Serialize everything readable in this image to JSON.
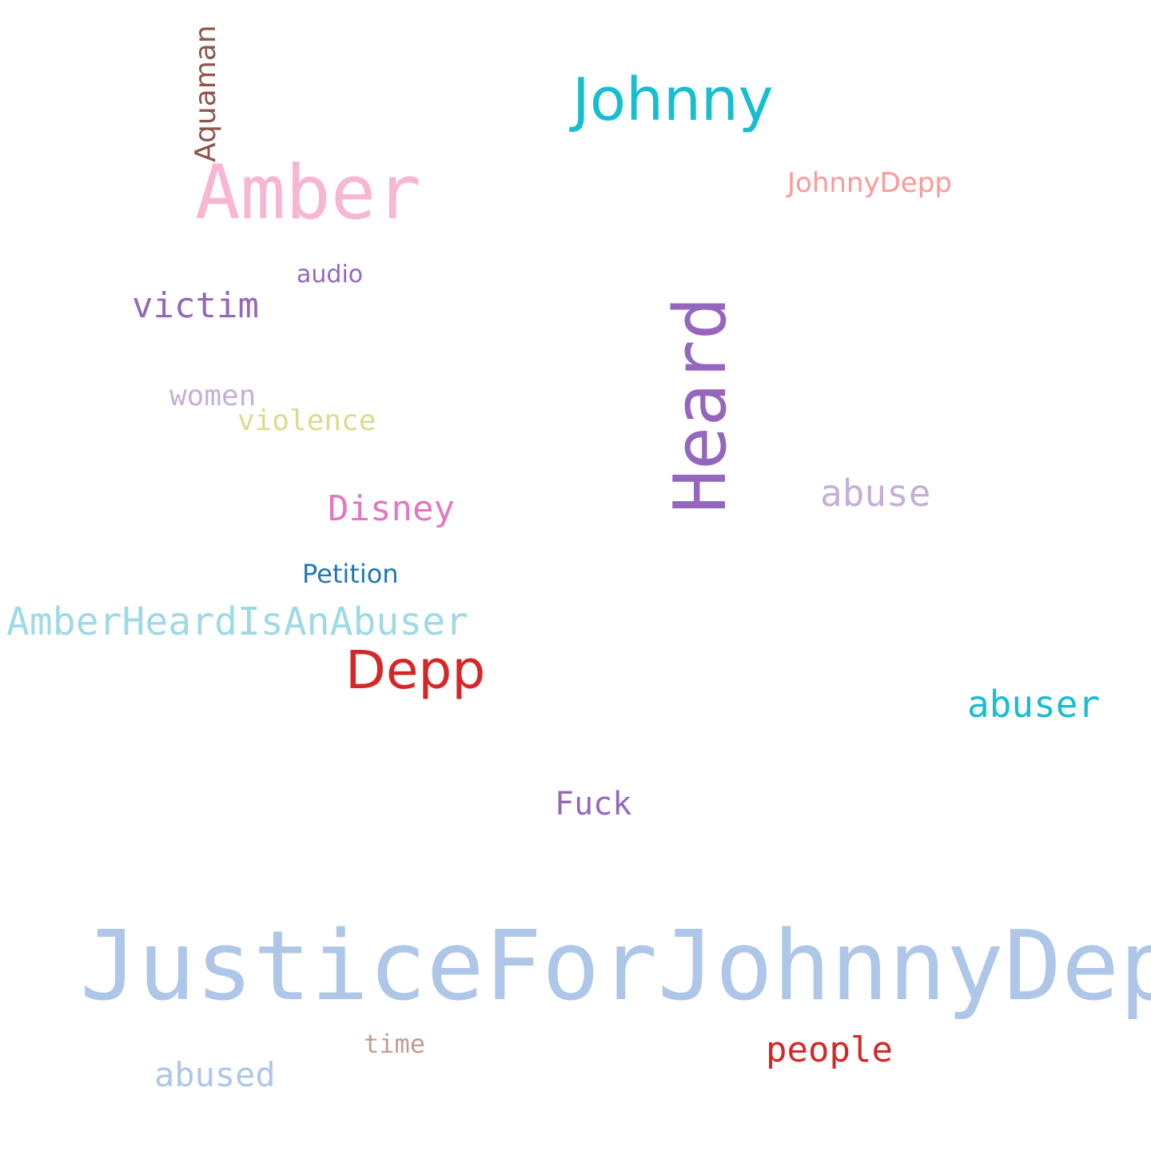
{
  "words": {
    "justice_for_johnny_depp": {
      "text": "JusticeForJohnnyDepp",
      "color": "#aec7e8"
    },
    "amber": {
      "text": "Amber",
      "color": "#f7b6d2"
    },
    "johnny": {
      "text": "Johnny",
      "color": "#17becf"
    },
    "heard": {
      "text": "Heard",
      "color": "#9467bd"
    },
    "depp": {
      "text": "Depp",
      "color": "#d62728"
    },
    "amber_heard_is_an_abuser": {
      "text": "AmberHeardIsAnAbuser",
      "color": "#9edae5"
    },
    "aquaman": {
      "text": "Aquaman",
      "color": "#8c564b"
    },
    "victim": {
      "text": "victim",
      "color": "#9467bd"
    },
    "abuser": {
      "text": "abuser",
      "color": "#17becf"
    },
    "abuse": {
      "text": "abuse",
      "color": "#c5b0d5"
    },
    "disney": {
      "text": "Disney",
      "color": "#e377c2"
    },
    "people": {
      "text": "people",
      "color": "#d62728"
    },
    "abused": {
      "text": "abused",
      "color": "#aec7e8"
    },
    "fuck": {
      "text": "Fuck",
      "color": "#9467bd"
    },
    "violence": {
      "text": "violence",
      "color": "#dbdb8d"
    },
    "women": {
      "text": "women",
      "color": "#c5b0d5"
    },
    "johnnydepp": {
      "text": "JohnnyDepp",
      "color": "#ff9896"
    },
    "petition": {
      "text": "Petition",
      "color": "#1f77b4"
    },
    "audio": {
      "text": "audio",
      "color": "#9467bd"
    },
    "time": {
      "text": "time",
      "color": "#c49c94"
    }
  }
}
